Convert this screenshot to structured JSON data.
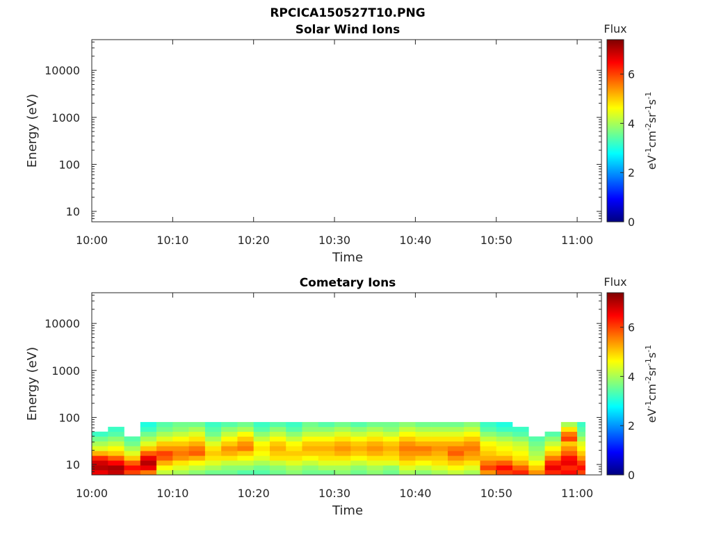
{
  "figure": {
    "title": "RPCICA150527T10.PNG"
  },
  "colorbar": {
    "label": "Flux",
    "unit_parts": [
      {
        "t": "eV",
        "sup": false
      },
      {
        "t": "-1",
        "sup": true
      },
      {
        "t": "cm",
        "sup": false
      },
      {
        "t": "-2",
        "sup": true
      },
      {
        "t": "sr",
        "sup": false
      },
      {
        "t": "-1",
        "sup": true
      },
      {
        "t": "s",
        "sup": false
      },
      {
        "t": "-1",
        "sup": true
      }
    ],
    "ticks": [
      "0",
      "2",
      "4",
      "6"
    ],
    "range": [
      0,
      7.4
    ],
    "colormap": "jet"
  },
  "chart_data": [
    {
      "type": "heatmap",
      "title": "Solar Wind Ions",
      "xlabel": "Time",
      "ylabel": "Energy (eV)",
      "yscale": "log",
      "x_tick_labels": [
        "10:00",
        "10:10",
        "10:20",
        "10:30",
        "10:40",
        "10:50",
        "11:00"
      ],
      "y_tick_labels": [
        "10",
        "100",
        "1000",
        "10000"
      ],
      "xlim": [
        "10:00",
        "11:03"
      ],
      "ylim": [
        6,
        45000
      ],
      "energy_bands": [],
      "cells": []
    },
    {
      "type": "heatmap",
      "title": "Cometary Ions",
      "xlabel": "Time",
      "ylabel": "Energy (eV)",
      "yscale": "log",
      "x_tick_labels": [
        "10:00",
        "10:10",
        "10:20",
        "10:30",
        "10:40",
        "10:50",
        "11:00"
      ],
      "y_tick_labels": [
        "10",
        "100",
        "1000",
        "10000"
      ],
      "xlim": [
        "10:00",
        "11:03"
      ],
      "ylim": [
        6,
        45000
      ],
      "energy_bands": [
        [
          6,
          7.6
        ],
        [
          7.6,
          9.6
        ],
        [
          9.6,
          12.2
        ],
        [
          12.2,
          15.4
        ],
        [
          15.4,
          19.5
        ],
        [
          19.5,
          24.7
        ],
        [
          24.7,
          31.2
        ],
        [
          31.2,
          39.5
        ],
        [
          39.5,
          50
        ],
        [
          50,
          63.3
        ],
        [
          63.3,
          80
        ]
      ],
      "time_bins_minutes": [
        0,
        2,
        4,
        6,
        8,
        10,
        12,
        14,
        16,
        18,
        20,
        22,
        24,
        26,
        28,
        30,
        32,
        34,
        36,
        38,
        40,
        42,
        44,
        46,
        48,
        50,
        52,
        54,
        56,
        58,
        60,
        61
      ],
      "cells": [
        [
          6.6,
          7.0,
          6.8,
          6.2,
          5.2,
          4.4,
          4.0,
          3.6,
          3.2,
          0,
          0
        ],
        [
          6.9,
          7.1,
          6.5,
          5.8,
          5.0,
          4.6,
          4.2,
          3.8,
          3.4,
          3.2,
          0
        ],
        [
          6.0,
          6.4,
          5.8,
          5.0,
          4.4,
          4.0,
          3.6,
          3.4,
          0,
          0,
          0
        ],
        [
          5.6,
          6.6,
          7.0,
          6.6,
          5.8,
          5.0,
          4.4,
          4.0,
          3.6,
          3.2,
          3.0
        ],
        [
          4.2,
          4.6,
          5.2,
          5.8,
          6.0,
          5.4,
          5.0,
          4.4,
          4.0,
          3.6,
          3.4
        ],
        [
          4.0,
          4.4,
          4.8,
          5.4,
          5.6,
          5.4,
          5.0,
          4.6,
          4.2,
          3.8,
          3.6
        ],
        [
          3.8,
          4.2,
          4.6,
          5.2,
          5.8,
          5.6,
          5.2,
          4.8,
          4.4,
          4.0,
          3.6
        ],
        [
          3.6,
          4.0,
          4.4,
          4.8,
          5.0,
          4.8,
          4.4,
          4.0,
          3.6,
          3.4,
          3.2
        ],
        [
          3.6,
          3.8,
          4.2,
          4.8,
          5.2,
          5.4,
          5.0,
          4.6,
          4.2,
          3.8,
          3.4
        ],
        [
          3.4,
          3.8,
          4.2,
          4.6,
          5.0,
          5.6,
          5.4,
          5.0,
          4.6,
          4.0,
          3.6
        ],
        [
          3.4,
          3.6,
          4.0,
          4.4,
          4.6,
          4.8,
          4.6,
          4.2,
          3.8,
          3.4,
          3.2
        ],
        [
          3.6,
          3.8,
          4.2,
          4.8,
          5.0,
          5.2,
          5.0,
          4.6,
          4.2,
          3.8,
          3.4
        ],
        [
          3.8,
          4.0,
          4.4,
          4.8,
          5.0,
          4.8,
          4.6,
          4.2,
          3.8,
          3.4,
          3.2
        ],
        [
          3.6,
          3.8,
          4.2,
          4.6,
          5.0,
          5.2,
          5.0,
          4.6,
          4.2,
          3.8,
          3.6
        ],
        [
          3.6,
          4.0,
          4.4,
          4.8,
          5.0,
          5.2,
          5.0,
          4.6,
          4.2,
          3.8,
          3.4
        ],
        [
          3.8,
          4.0,
          4.4,
          4.8,
          5.2,
          5.4,
          5.2,
          4.8,
          4.4,
          4.0,
          3.6
        ],
        [
          3.6,
          3.8,
          4.2,
          4.6,
          5.0,
          5.2,
          5.0,
          4.6,
          4.2,
          3.8,
          3.4
        ],
        [
          3.8,
          4.0,
          4.4,
          4.8,
          5.2,
          5.4,
          5.2,
          4.8,
          4.4,
          4.0,
          3.6
        ],
        [
          3.6,
          3.8,
          4.4,
          4.8,
          5.0,
          5.2,
          5.0,
          4.6,
          4.2,
          3.8,
          3.6
        ],
        [
          4.0,
          4.4,
          4.8,
          5.2,
          5.4,
          5.6,
          5.4,
          5.0,
          4.6,
          4.2,
          3.8
        ],
        [
          3.8,
          4.2,
          4.6,
          5.0,
          5.4,
          5.6,
          5.2,
          4.8,
          4.4,
          4.0,
          3.6
        ],
        [
          4.0,
          4.4,
          4.8,
          5.0,
          5.2,
          5.4,
          5.2,
          4.8,
          4.4,
          4.0,
          3.6
        ],
        [
          4.2,
          4.6,
          5.0,
          5.4,
          5.8,
          5.6,
          5.2,
          4.8,
          4.4,
          4.0,
          3.6
        ],
        [
          4.0,
          4.4,
          4.8,
          5.2,
          5.4,
          5.6,
          5.4,
          5.0,
          4.6,
          4.2,
          3.8
        ],
        [
          5.4,
          6.0,
          5.6,
          5.2,
          5.0,
          4.8,
          4.6,
          4.2,
          3.8,
          3.4,
          3.2
        ],
        [
          6.0,
          6.4,
          5.8,
          5.2,
          4.8,
          4.6,
          4.4,
          4.0,
          3.6,
          3.2,
          3.0
        ],
        [
          6.2,
          5.8,
          5.2,
          4.8,
          4.6,
          4.4,
          4.2,
          3.8,
          3.4,
          3.2,
          0
        ],
        [
          5.4,
          5.0,
          4.6,
          4.2,
          4.0,
          3.8,
          3.6,
          3.4,
          0,
          0,
          0
        ],
        [
          6.2,
          6.6,
          6.2,
          5.6,
          5.0,
          4.6,
          4.2,
          3.8,
          3.4,
          0,
          0
        ],
        [
          6.4,
          6.2,
          6.6,
          6.4,
          5.8,
          5.4,
          5.0,
          6.0,
          5.6,
          4.8,
          4.0
        ],
        [
          6.0,
          6.4,
          6.0,
          5.4,
          5.0,
          4.6,
          4.4,
          4.0,
          3.6,
          3.4,
          3.2
        ],
        [
          5.6,
          5.2,
          4.8,
          4.4,
          4.0,
          3.6,
          0,
          0,
          0,
          0,
          0
        ]
      ]
    }
  ]
}
